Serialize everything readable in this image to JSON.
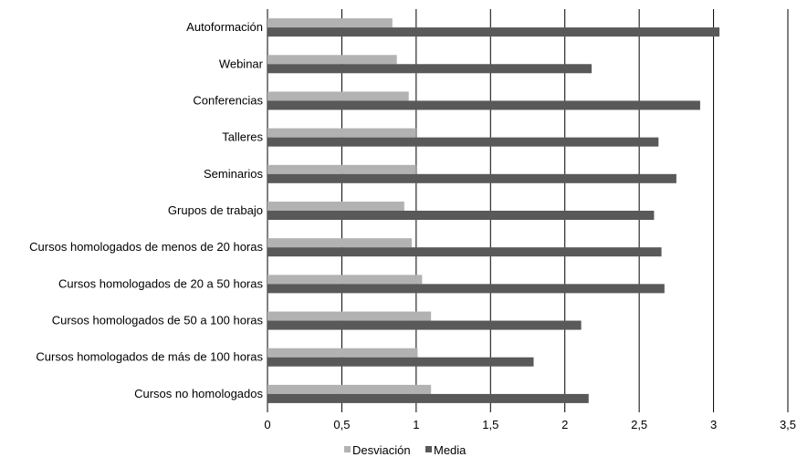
{
  "chart_data": {
    "type": "bar",
    "orientation": "horizontal",
    "categories": [
      "Autoformación",
      "Webinar",
      "Conferencias",
      "Talleres",
      "Seminarios",
      "Grupos de trabajo",
      "Cursos homologados de menos de 20 horas",
      "Cursos homologados de 20 a 50 horas",
      "Cursos homologados de 50 a 100 horas",
      "Cursos homologados de más de 100 horas",
      "Cursos no homologados"
    ],
    "series": [
      {
        "name": "Desviación",
        "color": "#b2b2b2",
        "values": [
          0.84,
          0.87,
          0.95,
          1.0,
          1.0,
          0.92,
          0.97,
          1.04,
          1.1,
          1.01,
          1.1
        ]
      },
      {
        "name": "Media",
        "color": "#595959",
        "values": [
          3.04,
          2.18,
          2.91,
          2.63,
          2.75,
          2.6,
          2.65,
          2.67,
          2.11,
          1.79,
          2.16
        ]
      }
    ],
    "xlim": [
      0,
      3.5
    ],
    "xticks": [
      "0",
      "0,5",
      "1",
      "1,5",
      "2",
      "2,5",
      "3",
      "3,5"
    ],
    "grid": "vertical",
    "legend_position": "bottom"
  }
}
